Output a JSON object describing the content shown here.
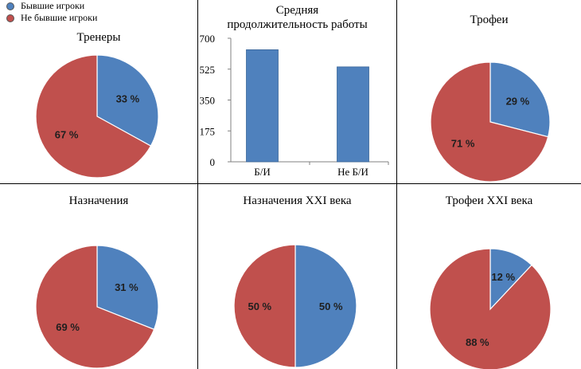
{
  "legend": {
    "items": [
      {
        "label": "Бывшие игроки",
        "color": "#4f81bd"
      },
      {
        "label": "Не бывшие игроки",
        "color": "#c0504d"
      }
    ]
  },
  "chart_data": [
    {
      "type": "pie",
      "title": "Тренеры",
      "slices": [
        {
          "name": "Бывшие игроки",
          "value": 33,
          "label": "33 %",
          "color": "#4f81bd"
        },
        {
          "name": "Не бывшие игроки",
          "value": 67,
          "label": "67 %",
          "color": "#c0504d"
        }
      ]
    },
    {
      "type": "bar",
      "title_lines": [
        "Средняя",
        "продолжительность работы"
      ],
      "categories": [
        "Б/И",
        "Не Б/И"
      ],
      "values": [
        635,
        538
      ],
      "ylim": [
        0,
        700
      ],
      "yticks": [
        "0",
        "175",
        "350",
        "525",
        "700"
      ],
      "bar_color": "#4f81bd"
    },
    {
      "type": "pie",
      "title": "Трофеи",
      "slices": [
        {
          "name": "Бывшие игроки",
          "value": 29,
          "label": "29 %",
          "color": "#4f81bd"
        },
        {
          "name": "Не бывшие игроки",
          "value": 71,
          "label": "71 %",
          "color": "#c0504d"
        }
      ]
    },
    {
      "type": "pie",
      "title": "Назначения",
      "slices": [
        {
          "name": "Бывшие игроки",
          "value": 31,
          "label": "31 %",
          "color": "#4f81bd"
        },
        {
          "name": "Не бывшие игроки",
          "value": 69,
          "label": "69 %",
          "color": "#c0504d"
        }
      ]
    },
    {
      "type": "pie",
      "title": "Назначения XXI века",
      "slices": [
        {
          "name": "Бывшие игроки",
          "value": 50,
          "label": "50 %",
          "color": "#4f81bd"
        },
        {
          "name": "Не бывшие игроки",
          "value": 50,
          "label": "50 %",
          "color": "#c0504d"
        }
      ]
    },
    {
      "type": "pie",
      "title": "Трофеи XXI века",
      "slices": [
        {
          "name": "Бывшие игроки",
          "value": 12,
          "label": "12 %",
          "color": "#4f81bd"
        },
        {
          "name": "Не бывшие игроки",
          "value": 88,
          "label": "88 %",
          "color": "#c0504d"
        }
      ]
    }
  ]
}
